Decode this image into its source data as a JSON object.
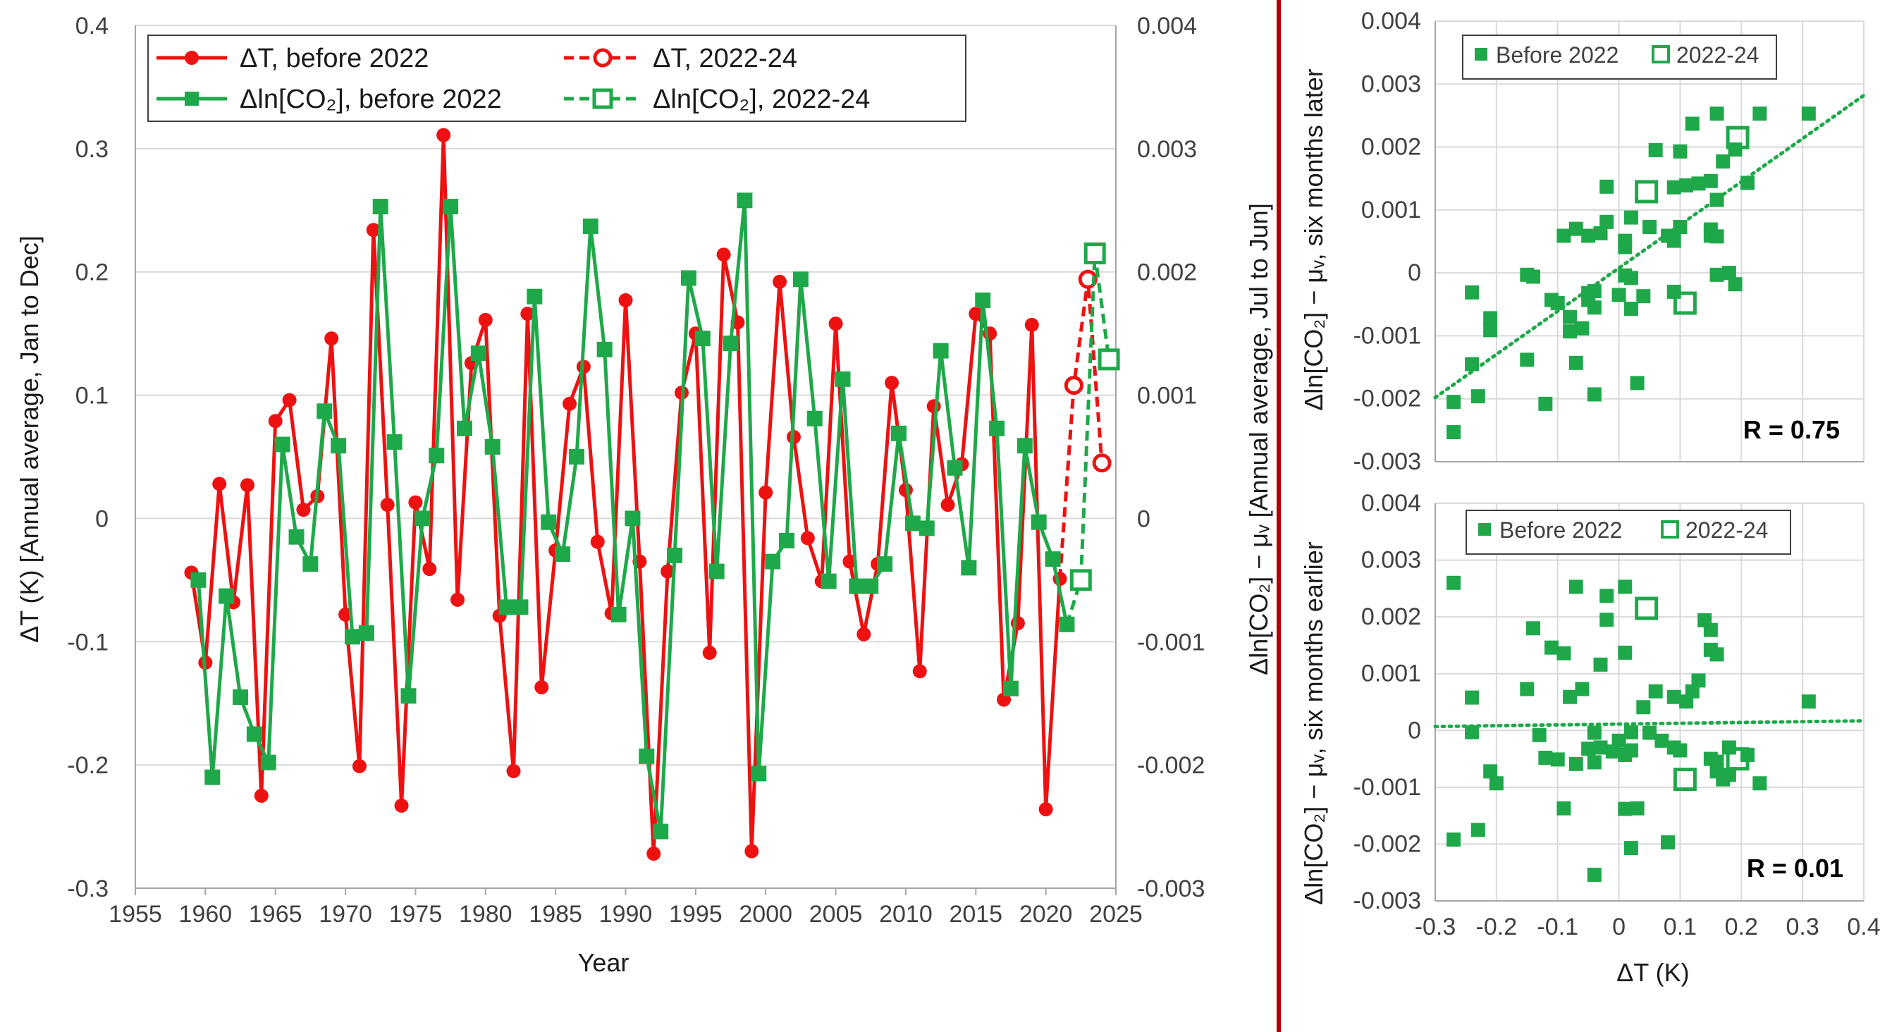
{
  "colors": {
    "red": "#ee1111",
    "green": "#1fa84a",
    "divider": "#b40000",
    "grid": "#d9d9d9",
    "axis": "#a6a6a6"
  },
  "chart_data": [
    {
      "type": "line",
      "title": "",
      "xlabel": "Year",
      "ylabel_left": "ΔT (K) [Annual average, Jan to Dec]",
      "ylabel_right": "Δln[CO₂] − μᵥ [Annual average, Jul to Jun]",
      "xlim": [
        1955,
        2025
      ],
      "ylim_left": [
        -0.3,
        0.4
      ],
      "ylim_right": [
        -0.003,
        0.004
      ],
      "xticks": [
        "1955",
        "1960",
        "1965",
        "1970",
        "1975",
        "1980",
        "1985",
        "1990",
        "1995",
        "2000",
        "2005",
        "2010",
        "2015",
        "2020",
        "2025"
      ],
      "yticks_left": [
        "0.4",
        "0.3",
        "0.2",
        "0.1",
        "0",
        "-0.1",
        "-0.2",
        "-0.3"
      ],
      "yticks_right": [
        "0.004",
        "0.003",
        "0.002",
        "0.001",
        "0",
        "-0.001",
        "-0.002",
        "-0.003"
      ],
      "legend": [
        "ΔT, before 2022",
        "ΔT, 2022-24",
        "Δln[CO₂], before 2022",
        "Δln[CO₂], 2022-24"
      ],
      "series": [
        {
          "name": "ΔT, before 2022",
          "axis": "left",
          "style": "solid-circle",
          "color": "#ee1111",
          "x": [
            1959,
            1960,
            1961,
            1962,
            1963,
            1964,
            1965,
            1966,
            1967,
            1968,
            1969,
            1970,
            1971,
            1972,
            1973,
            1974,
            1975,
            1976,
            1977,
            1978,
            1979,
            1980,
            1981,
            1982,
            1983,
            1984,
            1985,
            1986,
            1987,
            1988,
            1989,
            1990,
            1991,
            1992,
            1993,
            1994,
            1995,
            1996,
            1997,
            1998,
            1999,
            2000,
            2001,
            2002,
            2003,
            2004,
            2005,
            2006,
            2007,
            2008,
            2009,
            2010,
            2011,
            2012,
            2013,
            2014,
            2015,
            2016,
            2017,
            2018,
            2019,
            2020,
            2021
          ],
          "y": [
            -0.044,
            -0.117,
            0.028,
            -0.068,
            0.027,
            -0.225,
            0.079,
            0.096,
            0.007,
            0.018,
            0.146,
            -0.078,
            -0.201,
            0.234,
            0.011,
            -0.233,
            0.013,
            -0.041,
            0.311,
            -0.066,
            0.126,
            0.161,
            -0.079,
            -0.205,
            0.166,
            -0.137,
            -0.026,
            0.093,
            0.123,
            -0.019,
            -0.077,
            0.177,
            -0.035,
            -0.272,
            -0.043,
            0.102,
            0.15,
            -0.109,
            0.214,
            0.159,
            -0.27,
            0.021,
            0.192,
            0.066,
            -0.016,
            -0.051,
            0.158,
            -0.035,
            -0.094,
            -0.037,
            0.11,
            0.023,
            -0.124,
            0.091,
            0.011,
            0.044,
            0.166,
            0.15,
            -0.147,
            -0.085,
            0.157,
            -0.236,
            -0.049
          ]
        },
        {
          "name": "ΔT, 2022-24",
          "axis": "left",
          "style": "dashed-open-circle",
          "color": "#ee1111",
          "x": [
            2021,
            2022,
            2023,
            2024
          ],
          "y": [
            -0.049,
            0.108,
            0.194,
            0.045
          ]
        },
        {
          "name": "Δln[CO₂], before 2022",
          "axis": "right",
          "style": "solid-square",
          "color": "#1fa84a",
          "x": [
            1959.5,
            1960.5,
            1961.5,
            1962.5,
            1963.5,
            1964.5,
            1965.5,
            1966.5,
            1967.5,
            1968.5,
            1969.5,
            1970.5,
            1971.5,
            1972.5,
            1973.5,
            1974.5,
            1975.5,
            1976.5,
            1977.5,
            1978.5,
            1979.5,
            1980.5,
            1981.5,
            1982.5,
            1983.5,
            1984.5,
            1985.5,
            1986.5,
            1987.5,
            1988.5,
            1989.5,
            1990.5,
            1991.5,
            1992.5,
            1993.5,
            1994.5,
            1995.5,
            1996.5,
            1997.5,
            1998.5,
            1999.5,
            2000.5,
            2001.5,
            2002.5,
            2003.5,
            2004.5,
            2005.5,
            2006.5,
            2007.5,
            2008.5,
            2009.5,
            2010.5,
            2011.5,
            2012.5,
            2013.5,
            2014.5,
            2015.5,
            2016.5,
            2017.5,
            2018.5,
            2019.5,
            2020.5,
            2021.5
          ],
          "y": [
            -0.0005,
            -0.0021,
            -0.00063,
            -0.00145,
            -0.00175,
            -0.00198,
            0.0006,
            -0.00015,
            -0.00037,
            0.00087,
            0.00059,
            -0.00096,
            -0.00093,
            0.00253,
            0.00062,
            -0.00144,
            0.0,
            0.00051,
            0.00253,
            0.00073,
            0.00134,
            0.00058,
            -0.00072,
            -0.00072,
            0.0018,
            -3e-05,
            -0.00029,
            0.0005,
            0.00237,
            0.00137,
            -0.00078,
            0.0,
            -0.00193,
            -0.00254,
            -0.0003,
            0.00195,
            0.00146,
            -0.00043,
            0.00142,
            0.00258,
            -0.00207,
            -0.00035,
            -0.00018,
            0.00194,
            0.00081,
            -0.00051,
            0.00113,
            -0.00055,
            -0.00055,
            -0.00037,
            0.00069,
            -4e-05,
            -8e-05,
            0.00136,
            0.00041,
            -0.0004,
            0.00177,
            0.00073,
            -0.00138,
            0.00059,
            -3e-05,
            -0.00033,
            -0.00086
          ]
        },
        {
          "name": "Δln[CO₂], 2022-24",
          "axis": "right",
          "style": "dashed-open-square",
          "color": "#1fa84a",
          "x": [
            2021.5,
            2022.5,
            2023.5,
            2024.5
          ],
          "y": [
            -0.00086,
            -0.0005,
            0.00215,
            0.00129
          ]
        }
      ]
    },
    {
      "type": "scatter",
      "title": "",
      "xlabel": "ΔT (K)",
      "ylabel": "Δln[CO₂] − μᵥ, six months later",
      "xlim": [
        -0.3,
        0.4
      ],
      "ylim": [
        -0.003,
        0.004
      ],
      "yticks": [
        "0.004",
        "0.003",
        "0.002",
        "0.001",
        "0",
        "-0.001",
        "-0.002",
        "-0.003"
      ],
      "legend": [
        "Before 2022",
        "2022-24"
      ],
      "annotation": "R = 0.75",
      "trendline": {
        "x": [
          -0.3,
          0.4
        ],
        "y": [
          -0.00198,
          0.00282
        ]
      },
      "series": [
        {
          "name": "Before 2022",
          "marker": "filled-square",
          "points": [
            [
              -0.27,
              -0.00253
            ],
            [
              -0.27,
              -0.00205
            ],
            [
              -0.24,
              -0.00031
            ],
            [
              -0.23,
              -0.00196
            ],
            [
              -0.24,
              -0.00145
            ],
            [
              -0.21,
              -0.00072
            ],
            [
              -0.21,
              -0.00091
            ],
            [
              -0.15,
              -0.00138
            ],
            [
              -0.15,
              -3e-05
            ],
            [
              -0.14,
              -6e-05
            ],
            [
              -0.12,
              -0.00208
            ],
            [
              -0.11,
              -0.00043
            ],
            [
              -0.1,
              -0.00048
            ],
            [
              -0.09,
              0.00059
            ],
            [
              -0.08,
              -0.0007
            ],
            [
              -0.08,
              -0.00093
            ],
            [
              -0.07,
              0.0007
            ],
            [
              -0.07,
              -0.00143
            ],
            [
              -0.06,
              -0.00088
            ],
            [
              -0.05,
              -0.00032
            ],
            [
              -0.05,
              -0.00043
            ],
            [
              -0.05,
              0.00059
            ],
            [
              -0.04,
              -0.00193
            ],
            [
              -0.04,
              -0.00055
            ],
            [
              -0.04,
              -0.00029
            ],
            [
              -0.03,
              0.00063
            ],
            [
              -0.02,
              0.00137
            ],
            [
              -0.02,
              0.00081
            ],
            [
              0.0,
              -0.00035
            ],
            [
              0.01,
              -4e-05
            ],
            [
              0.01,
              0.00041
            ],
            [
              0.01,
              0.00051
            ],
            [
              0.02,
              0.00088
            ],
            [
              0.02,
              -8e-05
            ],
            [
              0.02,
              -0.00057
            ],
            [
              0.03,
              -0.00175
            ],
            [
              0.04,
              -0.00037
            ],
            [
              0.05,
              0.00073
            ],
            [
              0.06,
              0.00195
            ],
            [
              0.08,
              0.00059
            ],
            [
              0.09,
              0.00136
            ],
            [
              0.09,
              -0.0003
            ],
            [
              0.09,
              0.00051
            ],
            [
              0.1,
              0.00193
            ],
            [
              0.1,
              0.00073
            ],
            [
              0.11,
              0.00139
            ],
            [
              0.12,
              0.00237
            ],
            [
              0.13,
              0.00142
            ],
            [
              0.15,
              0.00146
            ],
            [
              0.15,
              0.00069
            ],
            [
              0.15,
              0.00059
            ],
            [
              0.16,
              0.00253
            ],
            [
              0.16,
              0.00116
            ],
            [
              0.16,
              -3e-05
            ],
            [
              0.16,
              0.00058
            ],
            [
              0.17,
              0.00177
            ],
            [
              0.18,
              0.0
            ],
            [
              0.19,
              0.00196
            ],
            [
              0.19,
              -0.00018
            ],
            [
              0.21,
              0.00143
            ],
            [
              0.23,
              0.00253
            ],
            [
              0.31,
              0.00253
            ]
          ]
        },
        {
          "name": "2022-24",
          "marker": "open-square",
          "points": [
            [
              0.045,
              0.00129
            ],
            [
              0.108,
              -0.00048
            ],
            [
              0.194,
              0.00215
            ]
          ]
        }
      ]
    },
    {
      "type": "scatter",
      "title": "",
      "xlabel": "ΔT (K)",
      "ylabel": "Δln[CO₂] − μᵥ, six months earlier",
      "xlim": [
        -0.3,
        0.4
      ],
      "ylim": [
        -0.003,
        0.004
      ],
      "xticks": [
        "-0.3",
        "-0.2",
        "-0.1",
        "0",
        "0.1",
        "0.2",
        "0.3",
        "0.4"
      ],
      "yticks": [
        "0.004",
        "0.003",
        "0.002",
        "0.001",
        "0",
        "-0.001",
        "-0.002",
        "-0.003"
      ],
      "legend": [
        "Before 2022",
        "2022-24"
      ],
      "annotation": "R = 0.01",
      "trendline": {
        "x": [
          -0.3,
          0.4
        ],
        "y": [
          7e-05,
          0.00017
        ]
      },
      "series": [
        {
          "name": "Before 2022",
          "marker": "filled-square",
          "points": [
            [
              -0.27,
              0.0026
            ],
            [
              -0.27,
              -0.00192
            ],
            [
              -0.24,
              0.00058
            ],
            [
              -0.24,
              -3e-05
            ],
            [
              -0.23,
              -0.00175
            ],
            [
              -0.21,
              -0.00072
            ],
            [
              -0.2,
              -0.00093
            ],
            [
              -0.15,
              0.00073
            ],
            [
              -0.14,
              0.0018
            ],
            [
              -0.13,
              -8e-05
            ],
            [
              -0.12,
              -0.00048
            ],
            [
              -0.11,
              0.00146
            ],
            [
              -0.1,
              -0.00051
            ],
            [
              -0.09,
              -0.00137
            ],
            [
              -0.09,
              0.00136
            ],
            [
              -0.08,
              0.00059
            ],
            [
              -0.07,
              -0.00059
            ],
            [
              -0.07,
              0.00253
            ],
            [
              -0.06,
              0.00073
            ],
            [
              -0.05,
              -0.00032
            ],
            [
              -0.04,
              -0.00254
            ],
            [
              -0.04,
              -4e-05
            ],
            [
              -0.04,
              -0.00056
            ],
            [
              -0.03,
              0.00116
            ],
            [
              -0.03,
              -0.0003
            ],
            [
              -0.02,
              0.00195
            ],
            [
              -0.02,
              0.00237
            ],
            [
              -0.01,
              -0.00037
            ],
            [
              0.0,
              -0.00018
            ],
            [
              0.01,
              0.00253
            ],
            [
              0.01,
              -0.00043
            ],
            [
              0.01,
              -0.00138
            ],
            [
              0.01,
              0.00137
            ],
            [
              0.02,
              -3e-05
            ],
            [
              0.02,
              -0.00207
            ],
            [
              0.02,
              -0.00035
            ],
            [
              0.03,
              -0.00137
            ],
            [
              0.04,
              0.00041
            ],
            [
              0.05,
              -4e-05
            ],
            [
              0.06,
              0.00069
            ],
            [
              0.07,
              -0.00018
            ],
            [
              0.08,
              -0.00197
            ],
            [
              0.09,
              0.00059
            ],
            [
              0.09,
              -0.0003
            ],
            [
              0.1,
              -0.00035
            ],
            [
              0.11,
              0.00051
            ],
            [
              0.12,
              0.00069
            ],
            [
              0.13,
              0.00088
            ],
            [
              0.14,
              0.00194
            ],
            [
              0.15,
              0.00177
            ],
            [
              0.15,
              0.00142
            ],
            [
              0.15,
              -0.0005
            ],
            [
              0.16,
              0.00134
            ],
            [
              0.16,
              -0.00072
            ],
            [
              0.16,
              -0.00055
            ],
            [
              0.17,
              -0.00086
            ],
            [
              0.18,
              -0.0003
            ],
            [
              0.18,
              -0.00078
            ],
            [
              0.21,
              -0.00043
            ],
            [
              0.23,
              -0.00093
            ],
            [
              0.31,
              0.00051
            ]
          ]
        },
        {
          "name": "2022-24",
          "marker": "open-square",
          "points": [
            [
              0.045,
              0.00215
            ],
            [
              0.108,
              -0.00086
            ],
            [
              0.194,
              -0.0005
            ]
          ]
        }
      ]
    }
  ]
}
